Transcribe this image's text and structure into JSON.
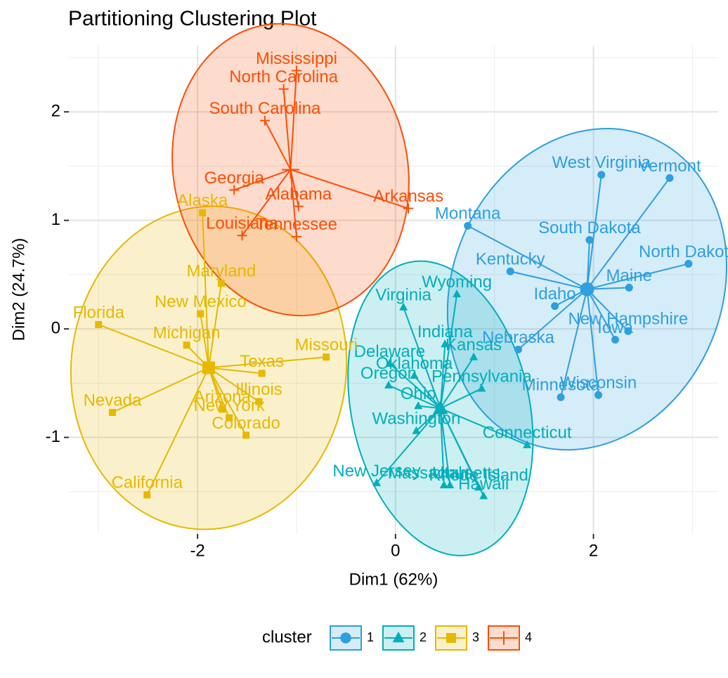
{
  "chart_data": {
    "type": "cluster-scatter",
    "title": "Partitioning Clustering Plot",
    "x_label": "Dim1 (62%)",
    "y_label": "Dim2 (24.7%)",
    "xlim": [
      -3.3,
      3.26
    ],
    "ylim": [
      -1.89,
      2.61
    ],
    "xticks": [
      -2,
      0,
      2
    ],
    "yticks": [
      -1,
      0,
      1,
      2
    ],
    "grid": true,
    "legend_title": "cluster",
    "legend_position": "bottom",
    "series": [
      {
        "name": "1",
        "color": "#2E9FDF",
        "shape": "circle",
        "labels": [
          "West Virginia",
          "Vermont",
          "Montana",
          "South Dakota",
          "North Dakota",
          "Kentucky",
          "Idaho",
          "Maine",
          "New Hampshire",
          "Iowa",
          "Nebraska",
          "Minnesota",
          "Wisconsin"
        ],
        "x": [
          2.08,
          2.77,
          0.73,
          1.96,
          2.96,
          1.16,
          1.61,
          2.36,
          2.35,
          2.22,
          1.24,
          1.67,
          2.05
        ],
        "values": [
          1.42,
          1.39,
          0.95,
          0.82,
          0.6,
          0.53,
          0.21,
          0.38,
          -0.02,
          -0.1,
          -0.19,
          -0.63,
          -0.61
        ]
      },
      {
        "name": "2",
        "color": "#00AFBB",
        "shape": "triangle",
        "labels": [
          "Virginia",
          "Wyoming",
          "Indiana",
          "Delaware",
          "Kansas",
          "Oklahoma",
          "Pennsylvania",
          "Oregon",
          "Ohio",
          "Washington",
          "Utah",
          "Massachusetts",
          "Rhode Island",
          "Hawaii",
          "Connecticut",
          "New Jersey"
        ],
        "x": [
          0.08,
          0.62,
          0.5,
          -0.06,
          0.79,
          0.19,
          0.87,
          -0.07,
          0.23,
          0.21,
          0.55,
          0.49,
          0.84,
          0.89,
          1.33,
          -0.19
        ],
        "values": [
          0.2,
          0.32,
          -0.14,
          -0.32,
          -0.26,
          -0.43,
          -0.55,
          -0.52,
          -0.71,
          -0.94,
          -1.44,
          -1.44,
          -1.46,
          -1.54,
          -1.07,
          -1.42
        ]
      },
      {
        "name": "3",
        "color": "#E7B800",
        "shape": "square",
        "labels": [
          "Alaska",
          "Maryland",
          "New Mexico",
          "Michigan",
          "Florida",
          "Missouri",
          "Texas",
          "Illinois",
          "Arizona",
          "New York",
          "Colorado",
          "Nevada",
          "California"
        ],
        "x": [
          -1.95,
          -1.76,
          -1.97,
          -2.11,
          -3.0,
          -0.7,
          -1.35,
          -1.38,
          -1.75,
          -1.68,
          -1.51,
          -2.86,
          -2.51
        ],
        "values": [
          1.07,
          0.42,
          0.14,
          -0.15,
          0.04,
          -0.26,
          -0.41,
          -0.67,
          -0.74,
          -0.82,
          -0.98,
          -0.77,
          -1.53
        ]
      },
      {
        "name": "4",
        "color": "#FC4E07",
        "shape": "cross",
        "labels": [
          "Mississippi",
          "North Carolina",
          "South Carolina",
          "Georgia",
          "Arkansas",
          "Alabama",
          "Louisiana",
          "Tennessee"
        ],
        "x": [
          -1.0,
          -1.13,
          -1.32,
          -1.63,
          0.13,
          -0.98,
          -1.55,
          -1.0
        ],
        "values": [
          2.38,
          2.21,
          1.92,
          1.28,
          1.11,
          1.13,
          0.86,
          0.85
        ]
      }
    ]
  }
}
